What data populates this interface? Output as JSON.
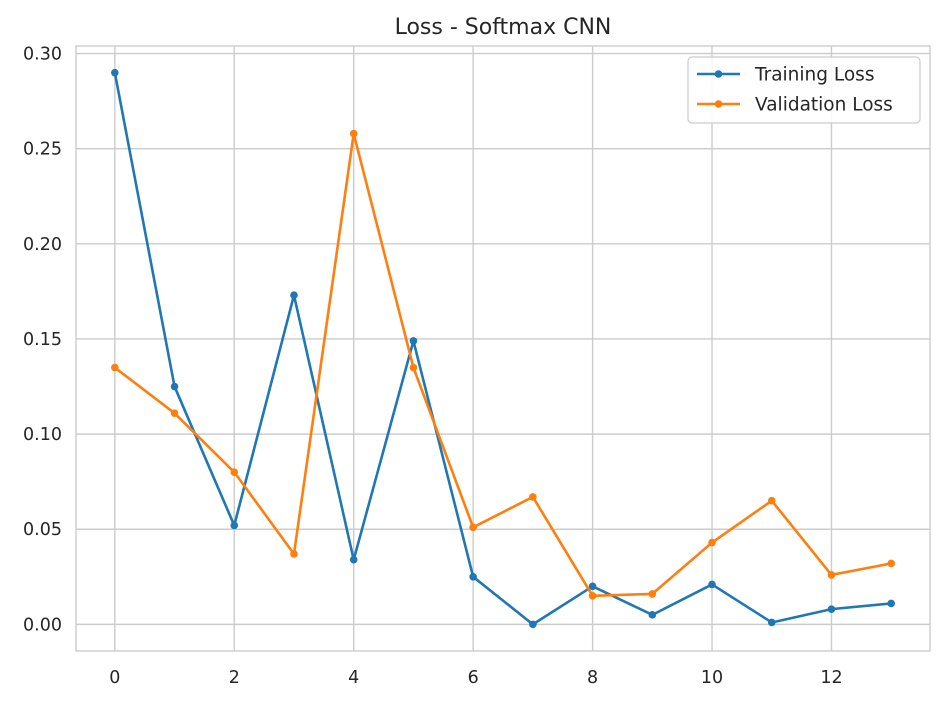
{
  "chart_data": {
    "type": "line",
    "title": "Loss - Softmax CNN",
    "xlabel": "",
    "ylabel": "",
    "x": [
      0,
      1,
      2,
      3,
      4,
      5,
      6,
      7,
      8,
      9,
      10,
      11,
      12,
      13
    ],
    "xlim": [
      -0.65,
      13.65
    ],
    "ylim": [
      -0.014,
      0.304
    ],
    "x_ticks": [
      0,
      2,
      4,
      6,
      8,
      10,
      12
    ],
    "x_tick_labels": [
      "0",
      "2",
      "4",
      "6",
      "8",
      "10",
      "12"
    ],
    "y_ticks": [
      0.0,
      0.05,
      0.1,
      0.15,
      0.2,
      0.25,
      0.3
    ],
    "y_tick_labels": [
      "0.00",
      "0.05",
      "0.10",
      "0.15",
      "0.20",
      "0.25",
      "0.30"
    ],
    "grid": true,
    "legend_position": "top-right",
    "series": [
      {
        "name": "Training Loss",
        "color": "#1f77b4",
        "marker": "circle",
        "values": [
          0.29,
          0.125,
          0.052,
          0.173,
          0.034,
          0.149,
          0.025,
          0.0,
          0.02,
          0.005,
          0.021,
          0.001,
          0.008,
          0.011
        ]
      },
      {
        "name": "Validation Loss",
        "color": "#ff7f0e",
        "marker": "circle",
        "values": [
          0.135,
          0.111,
          0.08,
          0.037,
          0.258,
          0.135,
          0.051,
          0.067,
          0.015,
          0.016,
          0.043,
          0.065,
          0.026,
          0.032
        ]
      }
    ]
  }
}
